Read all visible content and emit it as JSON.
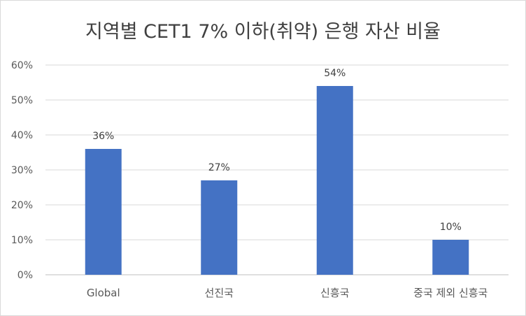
{
  "chart_data": {
    "type": "bar",
    "title": "지역별 CET1 7% 이하(취약) 은행 자산 비율",
    "categories": [
      "Global",
      "선진국",
      "신흥국",
      "중국 제외 신흥국"
    ],
    "values": [
      36,
      27,
      54,
      10
    ],
    "value_labels": [
      "36%",
      "27%",
      "54%",
      "10%"
    ],
    "ylim": [
      0,
      60
    ],
    "yticks": [
      0,
      10,
      20,
      30,
      40,
      50,
      60
    ],
    "ytick_labels": [
      "0%",
      "10%",
      "20%",
      "30%",
      "40%",
      "50%",
      "60%"
    ],
    "grid": true,
    "legend": "none",
    "bar_color": "#4472c4"
  }
}
